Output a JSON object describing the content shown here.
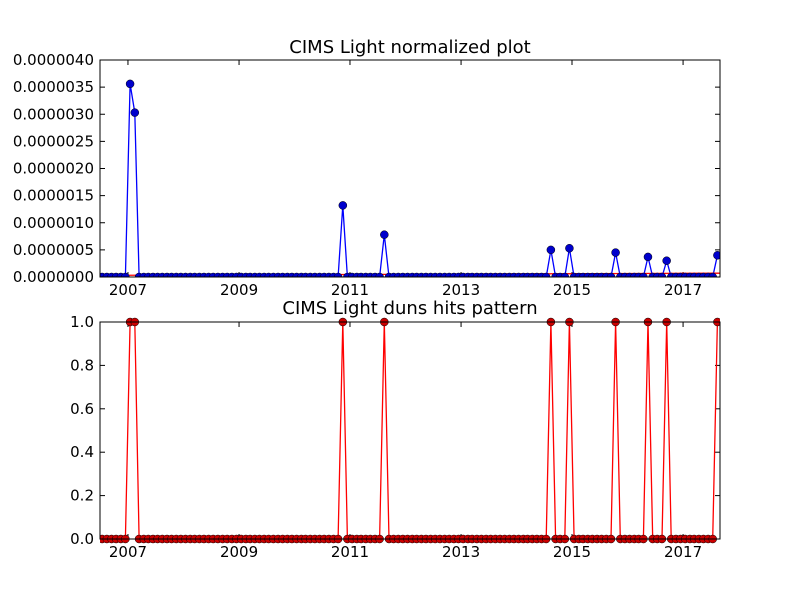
{
  "colors": {
    "top_series": "#0000ff",
    "top_marker": "#0000cc",
    "baseline": "#ff0000",
    "bottom_series": "#ff0000",
    "bottom_marker": "#cc0000"
  },
  "chart_data": [
    {
      "type": "line",
      "title": "CIMS Light normalized plot",
      "xlabel": "",
      "ylabel": "",
      "xlim": [
        "2006-07-01",
        "2017-09-01"
      ],
      "ylim": [
        0,
        4e-06
      ],
      "x_ticks": [
        "2007",
        "2009",
        "2011",
        "2013",
        "2015",
        "2017"
      ],
      "y_ticks": [
        "0.0000000",
        "0.0000005",
        "0.0000010",
        "0.0000015",
        "0.0000020",
        "0.0000025",
        "0.0000030",
        "0.0000035",
        "0.0000040"
      ],
      "grid": false,
      "series": [
        {
          "style": "blue line with circle markers",
          "points": [
            {
              "x": "2007-01-15",
              "y": 3.56e-06
            },
            {
              "x": "2007-02-15",
              "y": 3.03e-06
            },
            {
              "x": "2010-11-15",
              "y": 1.32e-06
            },
            {
              "x": "2011-08-15",
              "y": 7.8e-07
            },
            {
              "x": "2014-08-15",
              "y": 5e-07
            },
            {
              "x": "2014-12-15",
              "y": 5.3e-07
            },
            {
              "x": "2015-10-15",
              "y": 4.5e-07
            },
            {
              "x": "2016-05-15",
              "y": 3.7e-07
            },
            {
              "x": "2016-09-15",
              "y": 3e-07
            },
            {
              "x": "2017-08-15",
              "y": 4e-07
            }
          ],
          "baseline": 0
        },
        {
          "style": "red reference line",
          "points": [
            {
              "x": "2006-07-01",
              "y": 3e-08
            },
            {
              "x": "2017-09-01",
              "y": 7e-08
            }
          ]
        }
      ]
    },
    {
      "type": "line",
      "title": "CIMS Light duns hits pattern",
      "xlabel": "",
      "ylabel": "",
      "xlim": [
        "2006-07-01",
        "2017-09-01"
      ],
      "ylim": [
        0,
        1
      ],
      "x_ticks": [
        "2007",
        "2009",
        "2011",
        "2013",
        "2015",
        "2017"
      ],
      "y_ticks": [
        "0.0",
        "0.2",
        "0.4",
        "0.6",
        "0.8",
        "1.0"
      ],
      "grid": false,
      "series": [
        {
          "style": "red line with circle markers",
          "hits": [
            "2007-01-15",
            "2007-02-15",
            "2010-11-15",
            "2011-08-15",
            "2014-08-15",
            "2014-12-15",
            "2015-10-15",
            "2016-05-15",
            "2016-09-15",
            "2017-08-15"
          ],
          "hit_value": 1,
          "other_value": 0,
          "frequency": "monthly"
        }
      ]
    }
  ]
}
